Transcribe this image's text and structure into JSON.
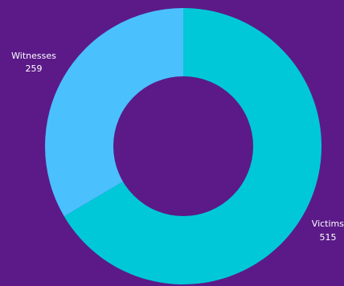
{
  "background": "#5b1a88",
  "chart_data": {
    "type": "pie",
    "donut": true,
    "title": "",
    "slices": [
      {
        "label": "Victims",
        "value": 515,
        "value_label": "515",
        "color": "#00c8d8"
      },
      {
        "label": "Witnesses",
        "value": 259,
        "value_label": "259",
        "color": "#4ac0fc"
      }
    ]
  }
}
